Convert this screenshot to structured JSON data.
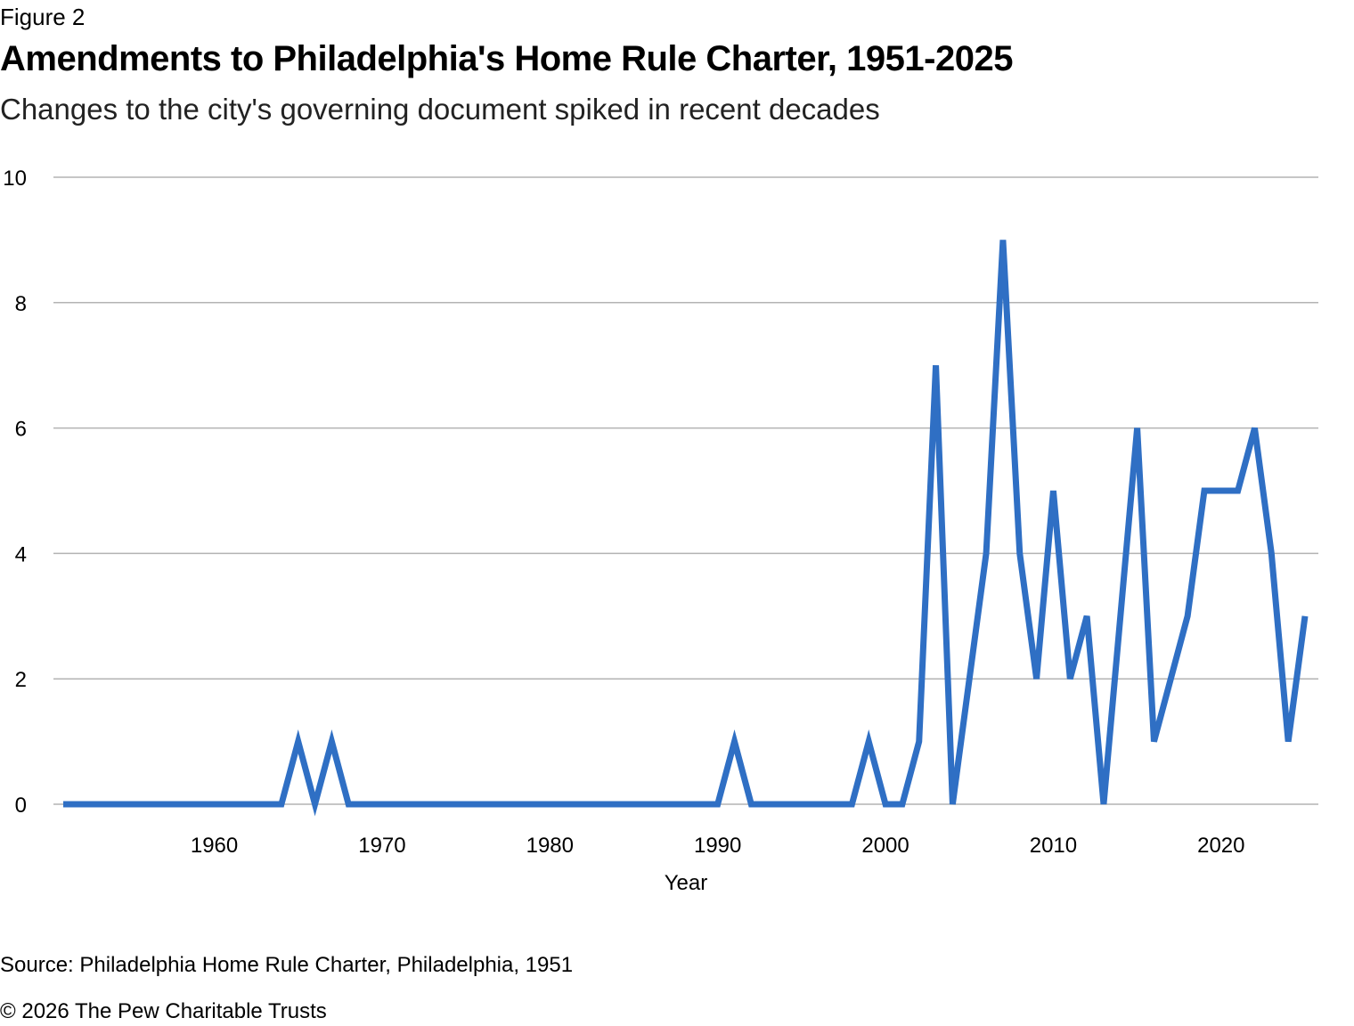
{
  "figure_label": "Figure 2",
  "source": "Source: Philadelphia Home Rule Charter, Philadelphia, 1951",
  "copyright": "© 2026 The Pew Charitable Trusts",
  "chart_data": {
    "type": "line",
    "title": "Amendments to Philadelphia's Home Rule Charter, 1951-2025",
    "subtitle": "Changes to the city's governing document spiked in recent decades",
    "xlabel": "Year",
    "ylabel": "",
    "xlim": [
      1951,
      2025
    ],
    "ylim": [
      0,
      10
    ],
    "x_ticks": [
      1960,
      1970,
      1980,
      1990,
      2000,
      2010,
      2020
    ],
    "y_ticks": [
      0,
      2,
      4,
      6,
      8,
      10
    ],
    "grid": true,
    "legend": "none",
    "color": "#2f6fc4",
    "x": [
      1951,
      1952,
      1953,
      1954,
      1955,
      1956,
      1957,
      1958,
      1959,
      1960,
      1961,
      1962,
      1963,
      1964,
      1965,
      1966,
      1967,
      1968,
      1969,
      1970,
      1971,
      1972,
      1973,
      1974,
      1975,
      1976,
      1977,
      1978,
      1979,
      1980,
      1981,
      1982,
      1983,
      1984,
      1985,
      1986,
      1987,
      1988,
      1989,
      1990,
      1991,
      1992,
      1993,
      1994,
      1995,
      1996,
      1997,
      1998,
      1999,
      2000,
      2001,
      2002,
      2003,
      2004,
      2005,
      2006,
      2007,
      2008,
      2009,
      2010,
      2011,
      2012,
      2013,
      2014,
      2015,
      2016,
      2017,
      2018,
      2019,
      2020,
      2021,
      2022,
      2023,
      2024,
      2025
    ],
    "series": [
      {
        "values": [
          0,
          0,
          0,
          0,
          0,
          0,
          0,
          0,
          0,
          0,
          0,
          0,
          0,
          0,
          1,
          0,
          1,
          0,
          0,
          0,
          0,
          0,
          0,
          0,
          0,
          0,
          0,
          0,
          0,
          0,
          0,
          0,
          0,
          0,
          0,
          0,
          0,
          0,
          0,
          0,
          1,
          0,
          0,
          0,
          0,
          0,
          0,
          0,
          1,
          0,
          0,
          1,
          7,
          0,
          2,
          4,
          9,
          4,
          2,
          5,
          2,
          3,
          0,
          3,
          6,
          1,
          2,
          3,
          5,
          5,
          5,
          6,
          4,
          1,
          3
        ]
      }
    ]
  }
}
